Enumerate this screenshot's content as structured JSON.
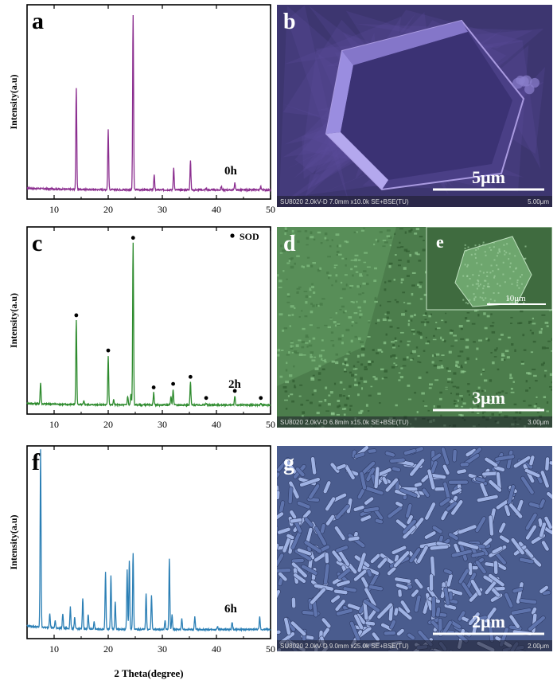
{
  "xrd_panels": [
    {
      "letter": "a",
      "sample_label": "0h",
      "ylabel": "Intensity(a.u)",
      "show_xlabel": false,
      "color": "#8b2e8f",
      "legend": null,
      "chart_data": {
        "type": "line",
        "xlim": [
          5,
          50
        ],
        "x_ticks": [
          10,
          20,
          30,
          40,
          50
        ],
        "ylabel": "Intensity(a.u)",
        "series": [
          {
            "peaks": [
              {
                "x": 14.1,
                "y": 0.55
              },
              {
                "x": 20.0,
                "y": 0.33
              },
              {
                "x": 24.6,
                "y": 0.95
              },
              {
                "x": 28.5,
                "y": 0.08
              },
              {
                "x": 32.1,
                "y": 0.12
              },
              {
                "x": 35.2,
                "y": 0.16
              },
              {
                "x": 38.1,
                "y": 0.01
              },
              {
                "x": 40.9,
                "y": 0.02
              },
              {
                "x": 43.4,
                "y": 0.04
              },
              {
                "x": 48.2,
                "y": 0.02
              }
            ]
          }
        ]
      }
    },
    {
      "letter": "c",
      "sample_label": "2h",
      "ylabel": "Intensity(a.u)",
      "show_xlabel": false,
      "color": "#2e8b2e",
      "legend": "SOD",
      "chart_data": {
        "type": "line",
        "xlim": [
          5,
          50
        ],
        "x_ticks": [
          10,
          20,
          30,
          40,
          50
        ],
        "ylabel": "Intensity(a.u)",
        "legend": [
          "SOD"
        ],
        "series": [
          {
            "peaks": [
              {
                "x": 7.5,
                "y": 0.12
              },
              {
                "x": 14.1,
                "y": 0.48
              },
              {
                "x": 15.5,
                "y": 0.02
              },
              {
                "x": 20.0,
                "y": 0.28
              },
              {
                "x": 21.0,
                "y": 0.03
              },
              {
                "x": 23.6,
                "y": 0.05
              },
              {
                "x": 24.2,
                "y": 0.06
              },
              {
                "x": 24.6,
                "y": 0.92
              },
              {
                "x": 28.4,
                "y": 0.07
              },
              {
                "x": 31.6,
                "y": 0.05
              },
              {
                "x": 32.0,
                "y": 0.09
              },
              {
                "x": 35.2,
                "y": 0.13
              },
              {
                "x": 38.1,
                "y": 0.01
              },
              {
                "x": 43.4,
                "y": 0.05
              },
              {
                "x": 48.2,
                "y": 0.01
              }
            ],
            "sod_markers": [
              14.1,
              20.0,
              24.6,
              28.4,
              32.0,
              35.2,
              38.1,
              43.4,
              48.2
            ]
          }
        ]
      }
    },
    {
      "letter": "f",
      "sample_label": "6h",
      "ylabel": "Intensity(a.u)",
      "show_xlabel": true,
      "xlabel": "2 Theta(degree)",
      "color": "#2b7fb5",
      "legend": null,
      "chart_data": {
        "type": "line",
        "xlim": [
          5,
          50
        ],
        "x_ticks": [
          10,
          20,
          30,
          40,
          50
        ],
        "xlabel": "2 Theta(degree)",
        "ylabel": "Intensity(a.u)",
        "series": [
          {
            "peaks": [
              {
                "x": 7.5,
                "y": 0.98
              },
              {
                "x": 9.2,
                "y": 0.08
              },
              {
                "x": 10.2,
                "y": 0.04
              },
              {
                "x": 11.6,
                "y": 0.08
              },
              {
                "x": 13.0,
                "y": 0.12
              },
              {
                "x": 13.8,
                "y": 0.06
              },
              {
                "x": 15.3,
                "y": 0.17
              },
              {
                "x": 16.3,
                "y": 0.08
              },
              {
                "x": 17.4,
                "y": 0.04
              },
              {
                "x": 19.5,
                "y": 0.32
              },
              {
                "x": 20.5,
                "y": 0.3
              },
              {
                "x": 21.3,
                "y": 0.15
              },
              {
                "x": 23.5,
                "y": 0.33
              },
              {
                "x": 23.9,
                "y": 0.38
              },
              {
                "x": 24.6,
                "y": 0.42
              },
              {
                "x": 27.0,
                "y": 0.2
              },
              {
                "x": 28.0,
                "y": 0.19
              },
              {
                "x": 30.5,
                "y": 0.05
              },
              {
                "x": 31.3,
                "y": 0.39
              },
              {
                "x": 31.8,
                "y": 0.08
              },
              {
                "x": 33.6,
                "y": 0.06
              },
              {
                "x": 36.0,
                "y": 0.07
              },
              {
                "x": 40.2,
                "y": 0.02
              },
              {
                "x": 42.9,
                "y": 0.04
              },
              {
                "x": 48.0,
                "y": 0.07
              }
            ]
          }
        ]
      }
    }
  ],
  "sem_panels": [
    {
      "letter": "b",
      "scale_text": "5μm",
      "info_text": "SU8020 2.0kV-D 7.0mm x10.0k SE+BSE(TU)",
      "info_right": "5.00μm",
      "tint": "#6a56b8",
      "style": "crystal"
    },
    {
      "letter": "d",
      "scale_text": "3μm",
      "info_text": "SU8020 2.0kV-D 6.8mm x15.0k SE+BSE(TU)",
      "info_right": "3.00μm",
      "tint": "#5aa05a",
      "style": "rough",
      "inset": {
        "letter": "e",
        "scale_text": "10μm"
      }
    },
    {
      "letter": "g",
      "scale_text": "2μm",
      "info_text": "SU8020 2.0kV-D 9.0mm x25.0k SE+BSE(TU)",
      "info_right": "2.00μm",
      "tint": "#6a84c2",
      "style": "rods"
    }
  ]
}
